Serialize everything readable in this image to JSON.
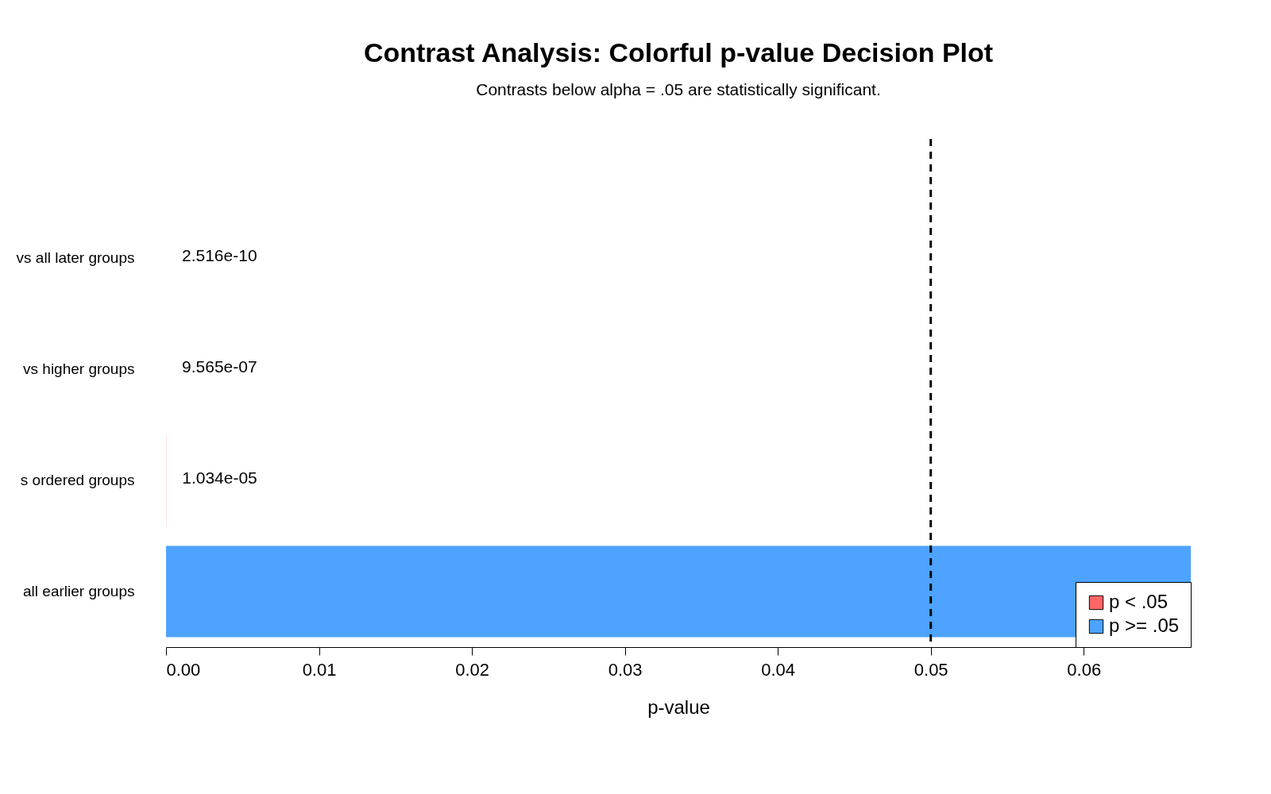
{
  "chart_data": {
    "type": "bar",
    "orientation": "horizontal",
    "title": "Contrast Analysis: Colorful p-value Decision Plot",
    "subtitle": "Contrasts below alpha = .05 are statistically significant.",
    "xlabel": "p-value",
    "categories": [
      "vs all later groups",
      "vs higher groups",
      "s ordered groups",
      "all earlier groups"
    ],
    "series": [
      {
        "name": "p < .05",
        "color": "#ff6666",
        "values": [
          2.516e-10,
          9.565e-07,
          1.034e-05,
          null
        ],
        "value_labels": [
          "2.516e-10",
          "9.565e-07",
          "1.034e-05",
          null
        ]
      },
      {
        "name": "p >= .05",
        "color": "#4da3ff",
        "values": [
          null,
          null,
          null,
          0.067
        ]
      }
    ],
    "xlim": [
      0,
      0.067
    ],
    "xticks": [
      {
        "value": 0,
        "label": "0.00"
      },
      0.01,
      0.02,
      0.03,
      0.04,
      0.05,
      0.06
    ],
    "ref_lines": [
      {
        "axis": "x",
        "value": 0.05,
        "color": "#000000",
        "line_style": "dashed"
      }
    ],
    "legend": "bottom right",
    "grid": false
  }
}
